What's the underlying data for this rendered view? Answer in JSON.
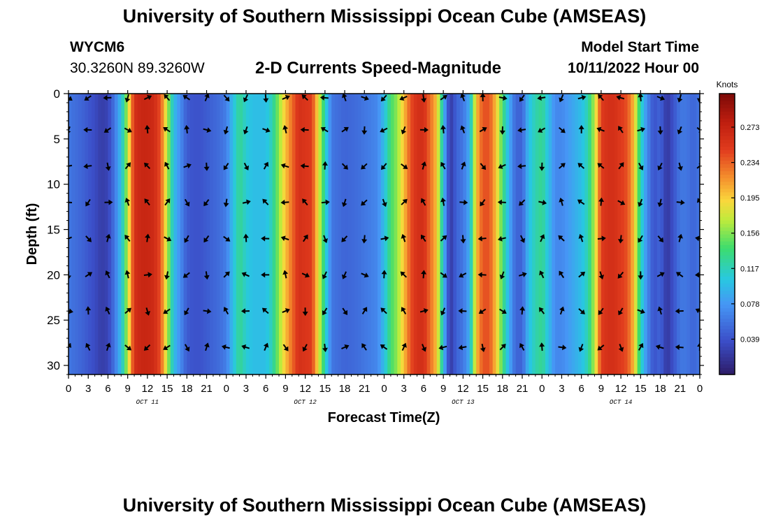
{
  "header": {
    "title": "University of Southern Mississippi Ocean Cube (AMSEAS)",
    "station_id": "WYCM6",
    "coordinates": "30.3260N  89.3260W",
    "subtitle": "2-D Currents Speed-Magnitude",
    "model_start_label": "Model Start Time",
    "model_start_value": "10/11/2022 Hour 00"
  },
  "footer": {
    "title": "University of Southern Mississippi Ocean Cube (AMSEAS)"
  },
  "chart_data": {
    "type": "heatmap",
    "title": "2-D Currents Speed-Magnitude",
    "xlabel": "Forecast Time(Z)",
    "ylabel": "Depth (ft)",
    "xlim": [
      0,
      96
    ],
    "ylim": [
      0,
      31
    ],
    "x_ticks": [
      0,
      3,
      6,
      9,
      12,
      15,
      18,
      21,
      24,
      27,
      30,
      33,
      36,
      39,
      42,
      45,
      48,
      51,
      54,
      57,
      60,
      63,
      66,
      69,
      72,
      75,
      78,
      81,
      84,
      87,
      90,
      93,
      96
    ],
    "x_tick_labels": [
      "0",
      "3",
      "6",
      "9",
      "12",
      "15",
      "18",
      "21",
      "0",
      "3",
      "6",
      "9",
      "12",
      "15",
      "18",
      "21",
      "0",
      "3",
      "6",
      "9",
      "12",
      "15",
      "18",
      "21",
      "0",
      "3",
      "6",
      "9",
      "12",
      "15",
      "18",
      "21",
      "0"
    ],
    "date_labels": [
      {
        "x": 12,
        "label": "OCT 11"
      },
      {
        "x": 36,
        "label": "OCT 12"
      },
      {
        "x": 60,
        "label": "OCT 13"
      },
      {
        "x": 84,
        "label": "OCT 14"
      }
    ],
    "y_ticks": [
      0,
      5,
      10,
      15,
      20,
      25,
      30
    ],
    "y_tick_labels": [
      "0",
      "5",
      "10",
      "15",
      "20",
      "25",
      "30"
    ],
    "colorbar": {
      "title": "Knots",
      "vmin": 0.0,
      "vmax": 0.31,
      "ticks": [
        0.039,
        0.078,
        0.117,
        0.156,
        0.195,
        0.234,
        0.273
      ],
      "tick_labels": [
        "0.039",
        "0.078",
        "0.117",
        "0.156",
        "0.195",
        "0.234",
        "0.273"
      ]
    },
    "speed_profile_knots": {
      "x": [
        0,
        2,
        4,
        5,
        6,
        7,
        8,
        9,
        10,
        11,
        12,
        13,
        14,
        15,
        16,
        18,
        19,
        20,
        21,
        22,
        23,
        24,
        25,
        26,
        27,
        28,
        30,
        31,
        33,
        35,
        37,
        39,
        40,
        42,
        44,
        47,
        48,
        49,
        50,
        52,
        53,
        54,
        56,
        57,
        58,
        59,
        60,
        61,
        62,
        63,
        64,
        65,
        66,
        67,
        68,
        69,
        70,
        71,
        72,
        73,
        74,
        75,
        76,
        77,
        78,
        79,
        80,
        81,
        82,
        83,
        84,
        85,
        86,
        87,
        88,
        89,
        90,
        91,
        92,
        93,
        94,
        95,
        96
      ],
      "values": [
        0.06,
        0.05,
        0.035,
        0.025,
        0.03,
        0.06,
        0.1,
        0.17,
        0.26,
        0.27,
        0.27,
        0.265,
        0.24,
        0.17,
        0.1,
        0.045,
        0.04,
        0.04,
        0.045,
        0.05,
        0.055,
        0.065,
        0.1,
        0.13,
        0.11,
        0.1,
        0.1,
        0.12,
        0.2,
        0.26,
        0.25,
        0.12,
        0.06,
        0.05,
        0.055,
        0.07,
        0.1,
        0.14,
        0.16,
        0.24,
        0.26,
        0.26,
        0.2,
        0.1,
        0.02,
        0.05,
        0.06,
        0.09,
        0.2,
        0.24,
        0.24,
        0.2,
        0.14,
        0.09,
        0.05,
        0.05,
        0.1,
        0.12,
        0.13,
        0.1,
        0.07,
        0.07,
        0.08,
        0.09,
        0.1,
        0.12,
        0.17,
        0.25,
        0.26,
        0.26,
        0.25,
        0.24,
        0.2,
        0.12,
        0.07,
        0.04,
        0.05,
        0.02,
        0.04,
        0.06,
        0.06,
        0.05,
        0.06
      ]
    },
    "vector_grid": {
      "x": [
        0,
        3,
        6,
        9,
        12,
        15,
        18,
        21,
        24,
        27,
        30,
        33,
        36,
        39,
        42,
        45,
        48,
        51,
        54,
        57,
        60,
        63,
        66,
        69,
        72,
        75,
        78,
        81,
        84,
        87,
        90,
        93,
        96
      ],
      "depths": [
        0,
        4,
        8,
        12,
        16,
        20,
        24,
        28
      ]
    }
  }
}
